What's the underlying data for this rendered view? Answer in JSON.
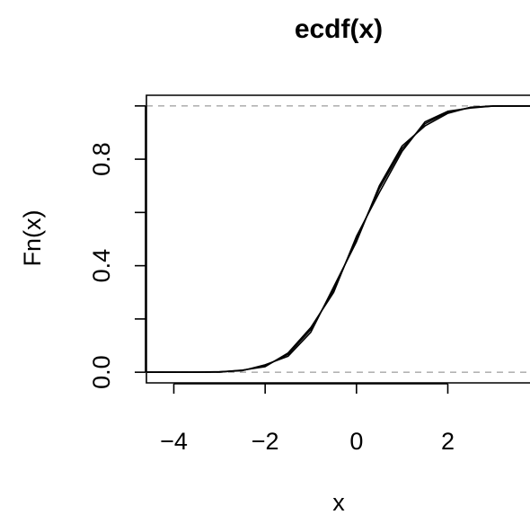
{
  "chart_data": {
    "type": "line",
    "subtype": "step",
    "title": "ecdf(x)",
    "xlabel": "x",
    "ylabel": "Fn(x)",
    "xlim": [
      -4.6,
      3.8
    ],
    "ylim": [
      -0.04,
      1.04
    ],
    "x_ticks": [
      -4,
      -2,
      0,
      2
    ],
    "x_tick_labels": [
      "−4",
      "−2",
      "0",
      "2"
    ],
    "y_ticks": [
      0,
      0.2,
      0.4,
      0.6,
      0.8,
      1.0
    ],
    "y_tick_labels": [
      "0.0",
      "",
      "0.4",
      "",
      "0.8",
      ""
    ],
    "reference_lines": [
      0,
      1
    ],
    "reference_line_color": "#b3b3b3",
    "line_color": "#000000",
    "series": [
      {
        "x": [
          -4.6,
          -3.5,
          -3.0,
          -2.5,
          -2.0,
          -1.5,
          -1.0,
          -0.5,
          0.0,
          0.5,
          1.0,
          1.5,
          2.0,
          2.5,
          3.0,
          3.8
        ],
        "y": [
          0.0,
          0.0,
          0.001,
          0.007,
          0.024,
          0.067,
          0.16,
          0.31,
          0.5,
          0.69,
          0.84,
          0.933,
          0.977,
          0.994,
          0.999,
          1.0
        ]
      },
      {
        "x": [
          -4.6,
          -3.5,
          -3.0,
          -2.5,
          -2.0,
          -1.5,
          -1.0,
          -0.5,
          0.0,
          0.5,
          1.0,
          1.5,
          2.0,
          2.5,
          3.0,
          3.8
        ],
        "y": [
          0.0,
          0.0,
          0.002,
          0.006,
          0.028,
          0.06,
          0.15,
          0.32,
          0.49,
          0.7,
          0.85,
          0.925,
          0.972,
          0.995,
          1.0,
          1.0
        ]
      },
      {
        "x": [
          -4.6,
          -3.5,
          -3.0,
          -2.5,
          -2.0,
          -1.5,
          -1.0,
          -0.5,
          0.0,
          0.5,
          1.0,
          1.5,
          2.0,
          2.5,
          3.0,
          3.8
        ],
        "y": [
          0.0,
          0.0,
          0.001,
          0.008,
          0.021,
          0.072,
          0.168,
          0.3,
          0.51,
          0.675,
          0.83,
          0.94,
          0.98,
          0.992,
          1.0,
          1.0
        ]
      }
    ]
  }
}
